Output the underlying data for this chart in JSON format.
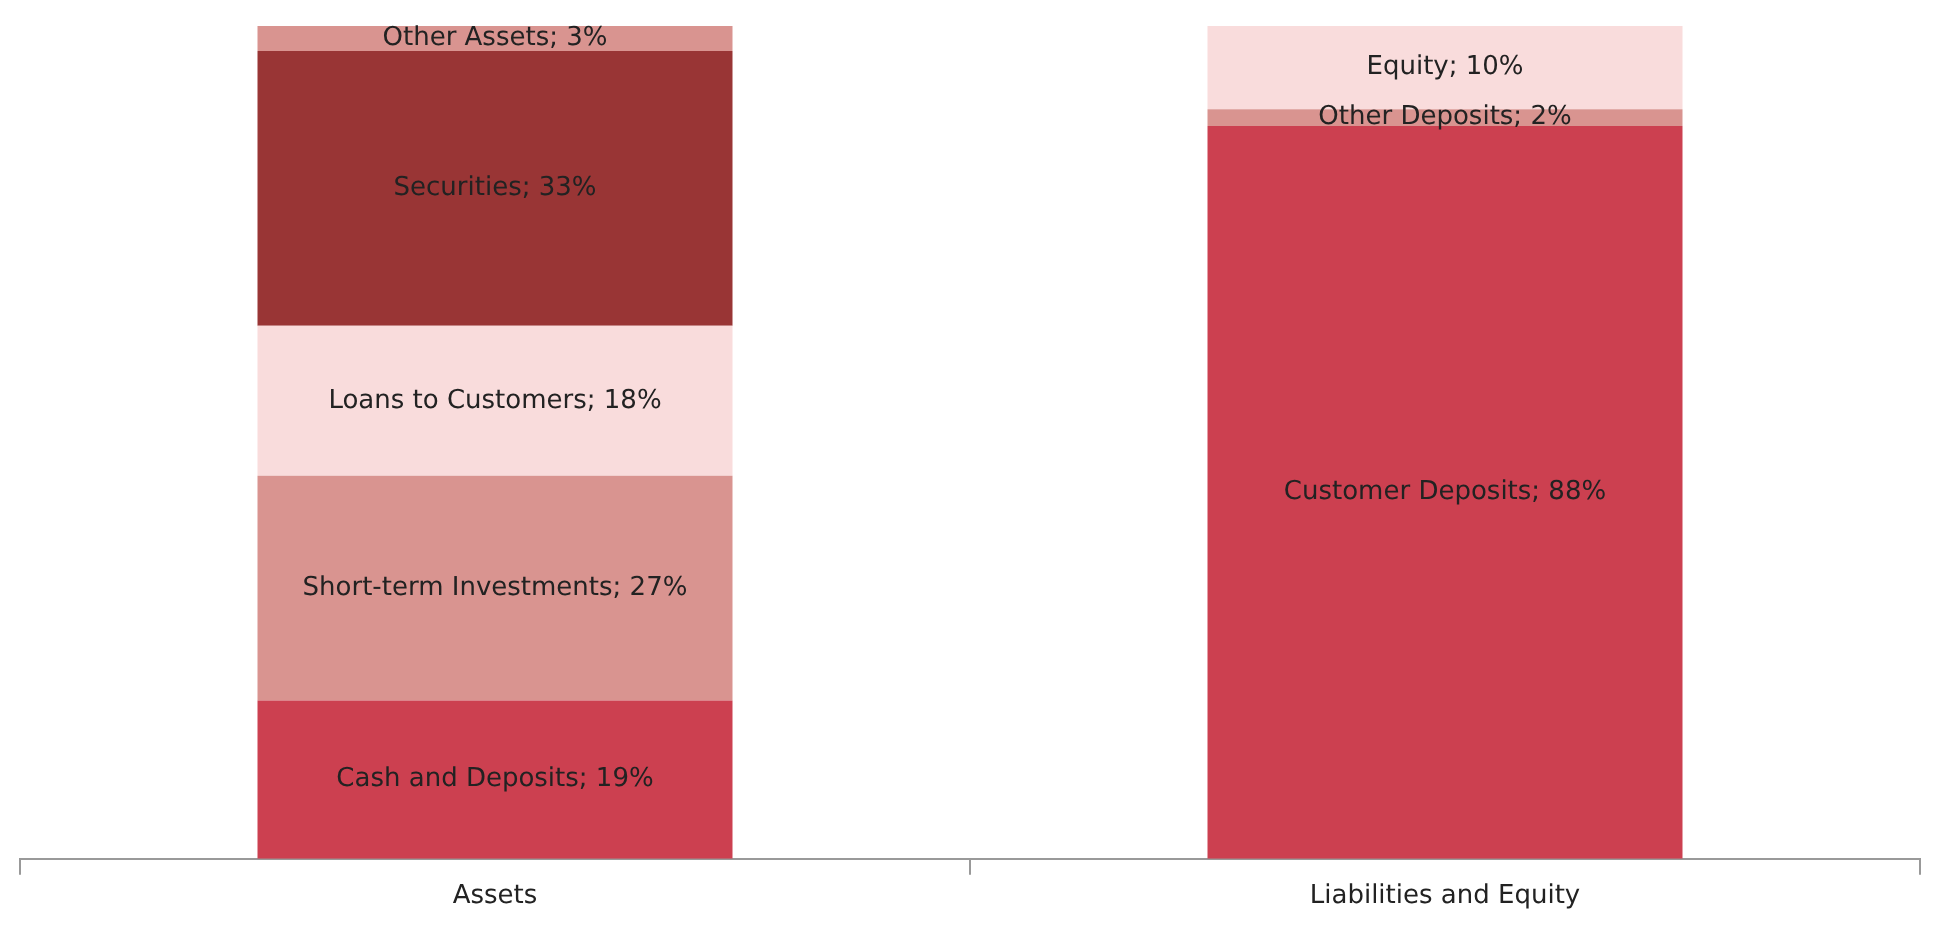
{
  "chart_data": {
    "type": "bar",
    "stacked": true,
    "categories": [
      "Assets",
      "Liabilities and Equity"
    ],
    "legend": false,
    "grid": false,
    "series": [
      {
        "color": "#cc4050",
        "values": [
          19,
          null
        ],
        "value_labels": [
          "Cash and Deposits; 19%",
          null
        ]
      },
      {
        "color": "#d99490",
        "values": [
          27,
          null
        ],
        "value_labels": [
          "Short-term Investments; 27%",
          null
        ]
      },
      {
        "color": "#f9dcdc",
        "values": [
          18,
          null
        ],
        "value_labels": [
          "Loans to Customers; 18%",
          null
        ]
      },
      {
        "color": "#993535",
        "values": [
          33,
          null
        ],
        "value_labels": [
          "Securities; 33%",
          null
        ]
      },
      {
        "color": "#d99490",
        "values": [
          3,
          null
        ],
        "value_labels": [
          "Other Assets; 3%",
          null
        ]
      },
      {
        "color": "#cc4050",
        "values": [
          null,
          88
        ],
        "value_labels": [
          null,
          "Customer Deposits; 88%"
        ]
      },
      {
        "color": "#d99490",
        "values": [
          null,
          2
        ],
        "value_labels": [
          null,
          "Other Deposits; 2%"
        ]
      },
      {
        "color": "#f9dcdc",
        "values": [
          null,
          10
        ],
        "value_labels": [
          null,
          "Equity; 10%"
        ]
      }
    ]
  }
}
